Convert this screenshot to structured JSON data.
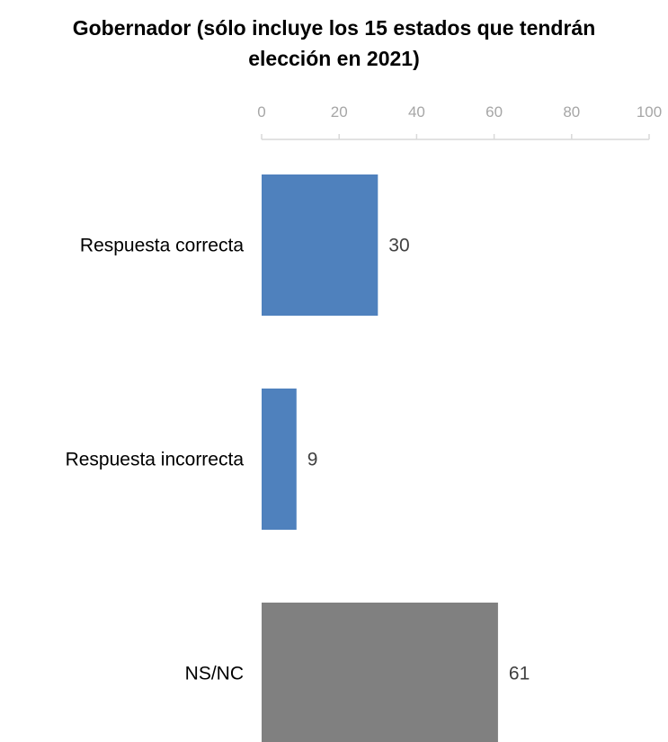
{
  "chart_data": {
    "type": "bar",
    "orientation": "horizontal",
    "title_lines": [
      "Gobernador (sólo incluye los 15 estados que tendrán",
      "elección en 2021)"
    ],
    "categories": [
      "Respuesta correcta",
      "Respuesta incorrecta",
      "NS/NC"
    ],
    "values": [
      30,
      9,
      61
    ],
    "bar_colors": [
      "#4f81bd",
      "#4f81bd",
      "#808080"
    ],
    "xlim": [
      0,
      100
    ],
    "x_ticks": [
      0,
      20,
      40,
      60,
      80,
      100
    ],
    "x_tick_labels": [
      "0",
      "20",
      "40",
      "60",
      "80",
      "100"
    ],
    "axis_position": "top",
    "grid": false,
    "xlabel": "",
    "ylabel": "",
    "data_labels": [
      "30",
      "9",
      "61"
    ]
  }
}
